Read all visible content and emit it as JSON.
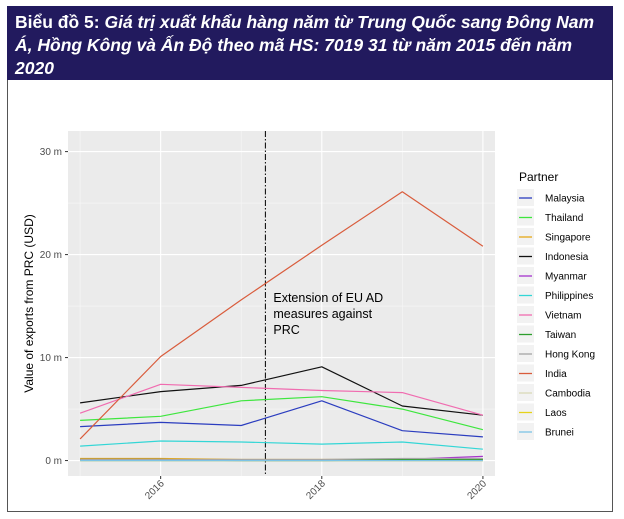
{
  "figure": {
    "title_prefix": "Biểu đồ 5:",
    "title_text": "Giá trị xuất khẩu hàng năm từ Trung Quốc sang Đông Nam Á, Hồng Kông và Ấn Độ theo mã HS: 7019 31 từ năm 2015 đến năm 2020"
  },
  "chart_data": {
    "type": "line",
    "ylabel": "Value of exports from PRC (USD)",
    "xlabel": "",
    "x": [
      2015,
      2016,
      2017,
      2018,
      2019,
      2020
    ],
    "xlim": [
      2014.85,
      2020.15
    ],
    "ylim": [
      -1.5,
      32
    ],
    "x_ticks": [
      2016,
      2018,
      2020
    ],
    "x_tick_labels": [
      "2016",
      "2018",
      "2020"
    ],
    "y_ticks": [
      0,
      10,
      20,
      30
    ],
    "y_tick_labels": [
      "0 m",
      "10 m",
      "20 m",
      "30 m"
    ],
    "grid": true,
    "legend_position": "right",
    "legend_title": "Partner",
    "series": [
      {
        "name": "Malaysia",
        "color": "#2b3dbf",
        "values": [
          3.3,
          3.7,
          3.4,
          5.8,
          2.9,
          2.3
        ]
      },
      {
        "name": "Thailand",
        "color": "#3ee63e",
        "values": [
          3.9,
          4.3,
          5.8,
          6.2,
          5.0,
          3.0
        ]
      },
      {
        "name": "Singapore",
        "color": "#e6a817",
        "values": [
          0.2,
          0.2,
          0.1,
          0.1,
          0.1,
          0.1
        ]
      },
      {
        "name": "Indonesia",
        "color": "#111111",
        "values": [
          5.6,
          6.7,
          7.3,
          9.1,
          5.3,
          4.4
        ]
      },
      {
        "name": "Myanmar",
        "color": "#a633cc",
        "values": [
          0.1,
          0.1,
          0.0,
          0.0,
          0.1,
          0.4
        ]
      },
      {
        "name": "Philippines",
        "color": "#33d6d6",
        "values": [
          1.4,
          1.9,
          1.8,
          1.6,
          1.8,
          1.1
        ]
      },
      {
        "name": "Vietnam",
        "color": "#f06cb0",
        "values": [
          4.6,
          7.4,
          7.1,
          6.8,
          6.6,
          4.4
        ]
      },
      {
        "name": "Taiwan",
        "color": "#2e9e2e",
        "values": [
          0.1,
          0.1,
          0.0,
          0.0,
          0.1,
          0.1
        ]
      },
      {
        "name": "Hong Kong",
        "color": "#a6a6a6",
        "values": [
          0.1,
          0.1,
          0.1,
          0.1,
          0.2,
          0.2
        ]
      },
      {
        "name": "India",
        "color": "#d95c3c",
        "values": [
          2.1,
          10.1,
          15.6,
          20.9,
          26.1,
          20.8
        ]
      },
      {
        "name": "Cambodia",
        "color": "#d9d9b8",
        "values": [
          0.0,
          0.0,
          0.0,
          0.0,
          0.0,
          0.0
        ]
      },
      {
        "name": "Laos",
        "color": "#e6d21a",
        "values": [
          0.0,
          0.0,
          0.0,
          0.0,
          0.0,
          0.0
        ]
      },
      {
        "name": "Brunei",
        "color": "#7cc4e6",
        "values": [
          0.0,
          0.0,
          0.0,
          0.0,
          0.0,
          0.0
        ]
      }
    ],
    "annotations": [
      {
        "type": "vline",
        "x": 2017.3,
        "style": "dashdot",
        "color": "#000000",
        "text": [
          "Extension of EU AD",
          "measures against",
          "PRC"
        ]
      }
    ]
  }
}
